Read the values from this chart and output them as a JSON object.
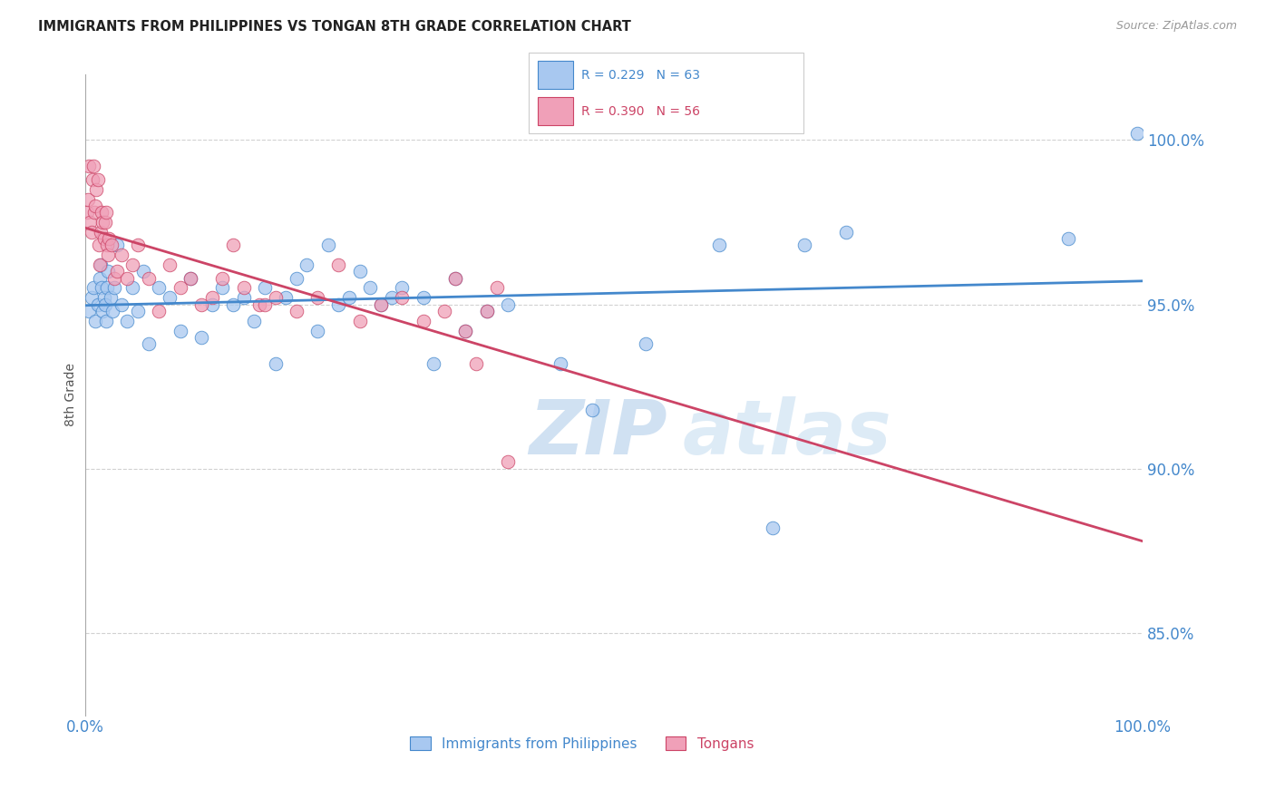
{
  "title": "IMMIGRANTS FROM PHILIPPINES VS TONGAN 8TH GRADE CORRELATION CHART",
  "source": "Source: ZipAtlas.com",
  "ylabel": "8th Grade",
  "ytick_labels": [
    "85.0%",
    "90.0%",
    "95.0%",
    "100.0%"
  ],
  "ytick_values": [
    85.0,
    90.0,
    95.0,
    100.0
  ],
  "xlim": [
    0.0,
    100.0
  ],
  "ylim": [
    82.5,
    102.0
  ],
  "blue_R": 0.229,
  "blue_N": 63,
  "pink_R": 0.39,
  "pink_N": 56,
  "blue_color": "#A8C8F0",
  "pink_color": "#F0A0B8",
  "blue_line_color": "#4488CC",
  "pink_line_color": "#CC4466",
  "legend_label_blue": "Immigrants from Philippines",
  "legend_label_pink": "Tongans",
  "watermark_zip": "ZIP",
  "watermark_atlas": "atlas",
  "blue_scatter_x": [
    0.4,
    0.6,
    0.8,
    1.0,
    1.2,
    1.4,
    1.5,
    1.6,
    1.7,
    1.8,
    1.9,
    2.0,
    2.1,
    2.2,
    2.4,
    2.6,
    2.8,
    3.0,
    3.5,
    4.0,
    4.5,
    5.0,
    5.5,
    6.0,
    7.0,
    8.0,
    9.0,
    10.0,
    11.0,
    12.0,
    13.0,
    14.0,
    15.0,
    16.0,
    17.0,
    18.0,
    19.0,
    20.0,
    21.0,
    22.0,
    23.0,
    24.0,
    25.0,
    26.0,
    27.0,
    28.0,
    29.0,
    30.0,
    32.0,
    33.0,
    35.0,
    36.0,
    38.0,
    40.0,
    45.0,
    48.0,
    53.0,
    60.0,
    65.0,
    68.0,
    72.0,
    93.0,
    99.5
  ],
  "blue_scatter_y": [
    94.8,
    95.2,
    95.5,
    94.5,
    95.0,
    95.8,
    96.2,
    95.5,
    94.8,
    95.2,
    95.0,
    94.5,
    95.5,
    96.0,
    95.2,
    94.8,
    95.5,
    96.8,
    95.0,
    94.5,
    95.5,
    94.8,
    96.0,
    93.8,
    95.5,
    95.2,
    94.2,
    95.8,
    94.0,
    95.0,
    95.5,
    95.0,
    95.2,
    94.5,
    95.5,
    93.2,
    95.2,
    95.8,
    96.2,
    94.2,
    96.8,
    95.0,
    95.2,
    96.0,
    95.5,
    95.0,
    95.2,
    95.5,
    95.2,
    93.2,
    95.8,
    94.2,
    94.8,
    95.0,
    93.2,
    91.8,
    93.8,
    96.8,
    88.2,
    96.8,
    97.2,
    97.0,
    100.2
  ],
  "pink_scatter_x": [
    0.2,
    0.3,
    0.4,
    0.5,
    0.6,
    0.7,
    0.8,
    0.9,
    1.0,
    1.1,
    1.2,
    1.3,
    1.4,
    1.5,
    1.6,
    1.7,
    1.8,
    1.9,
    2.0,
    2.1,
    2.2,
    2.3,
    2.5,
    2.8,
    3.0,
    3.5,
    4.0,
    4.5,
    5.0,
    6.0,
    7.0,
    8.0,
    9.0,
    10.0,
    11.0,
    12.0,
    13.0,
    14.0,
    15.0,
    16.5,
    17.0,
    18.0,
    20.0,
    22.0,
    24.0,
    26.0,
    28.0,
    30.0,
    32.0,
    34.0,
    35.0,
    36.0,
    37.0,
    38.0,
    39.0,
    40.0
  ],
  "pink_scatter_y": [
    97.8,
    98.2,
    99.2,
    97.5,
    97.2,
    98.8,
    99.2,
    97.8,
    98.0,
    98.5,
    98.8,
    96.8,
    96.2,
    97.2,
    97.8,
    97.5,
    97.0,
    97.5,
    97.8,
    96.8,
    96.5,
    97.0,
    96.8,
    95.8,
    96.0,
    96.5,
    95.8,
    96.2,
    96.8,
    95.8,
    94.8,
    96.2,
    95.5,
    95.8,
    95.0,
    95.2,
    95.8,
    96.8,
    95.5,
    95.0,
    95.0,
    95.2,
    94.8,
    95.2,
    96.2,
    94.5,
    95.0,
    95.2,
    94.5,
    94.8,
    95.8,
    94.2,
    93.2,
    94.8,
    95.5,
    90.2
  ]
}
